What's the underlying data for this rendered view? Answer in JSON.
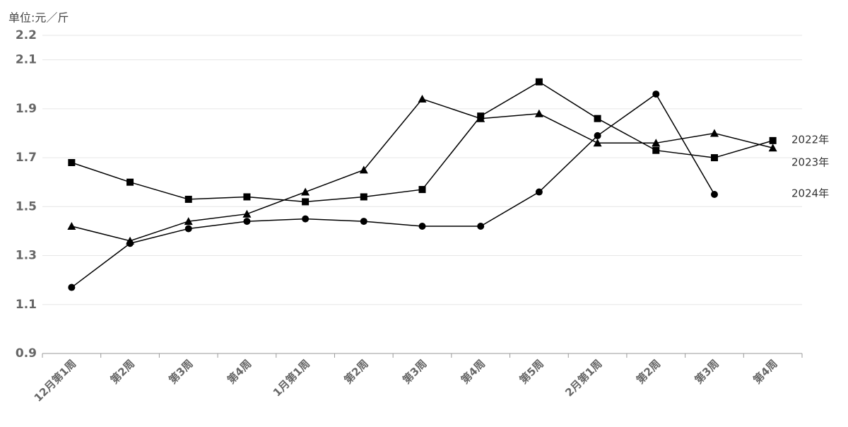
{
  "chart_data": {
    "type": "line",
    "y_label": "单位:元／斤",
    "categories": [
      "12月第1周",
      "第2周",
      "第3周",
      "第4周",
      "1月第1周",
      "第2周",
      "第3周",
      "第4周",
      "第5周",
      "2月第1周",
      "第2周",
      "第3周",
      "第4周"
    ],
    "series": [
      {
        "name": "2022年",
        "color": "#000000",
        "marker": "square",
        "values": [
          1.68,
          1.6,
          1.53,
          1.54,
          1.52,
          1.54,
          1.57,
          1.87,
          2.01,
          1.86,
          1.73,
          1.7,
          1.77
        ]
      },
      {
        "name": "2023年",
        "color": "#000000",
        "marker": "triangle",
        "values": [
          1.42,
          1.36,
          1.44,
          1.47,
          1.56,
          1.65,
          1.94,
          1.86,
          1.88,
          1.76,
          1.76,
          1.8,
          1.74
        ]
      },
      {
        "name": "2024年",
        "color": "#000000",
        "marker": "circle",
        "values": [
          1.17,
          1.35,
          1.41,
          1.44,
          1.45,
          1.44,
          1.42,
          1.42,
          1.56,
          1.79,
          1.96,
          1.55,
          null
        ]
      }
    ],
    "ylim": [
      0.9,
      2.2
    ],
    "yticks": [
      0.9,
      1.1,
      1.3,
      1.5,
      1.7,
      1.9,
      2.1,
      2.2
    ],
    "grid": true
  }
}
